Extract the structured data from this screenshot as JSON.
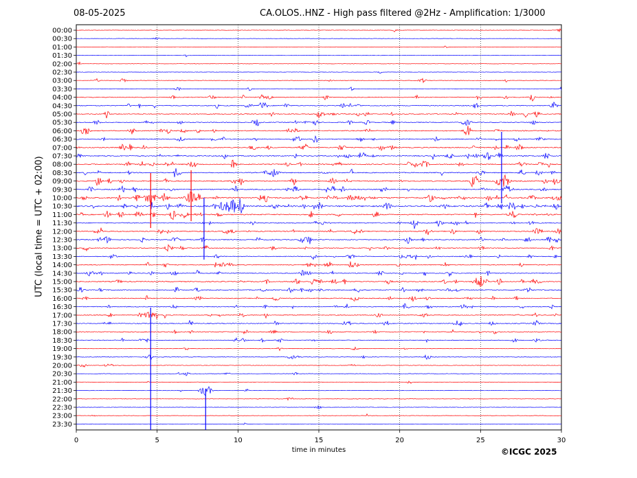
{
  "header": {
    "date": "08-05-2025",
    "title": "CA.OLOS..HNZ - High pass filtered @2Hz - Amplification: 1/3000"
  },
  "footer": {
    "copyright": "©ICGC 2025"
  },
  "colors": {
    "trace_even": "#ff0000",
    "trace_odd": "#0000ff",
    "grid": "#000000",
    "background": "#ffffff"
  },
  "chart_data": {
    "type": "line",
    "title": "CA.OLOS..HNZ - High pass filtered @2Hz - Amplification: 1/3000",
    "xlabel": "time in minutes",
    "ylabel": "UTC (local time = UTC + 02:00)",
    "xlim": [
      0,
      30
    ],
    "x_ticks": [
      0,
      5,
      10,
      15,
      20,
      25,
      30
    ],
    "vertical_grid_minutes": [
      5,
      10,
      15,
      20,
      25
    ],
    "grid": true,
    "row_labels": [
      "00:00",
      "00:30",
      "01:00",
      "01:30",
      "02:00",
      "02:30",
      "03:00",
      "03:30",
      "04:00",
      "04:30",
      "05:00",
      "05:30",
      "06:00",
      "06:30",
      "07:00",
      "07:30",
      "08:00",
      "08:30",
      "09:00",
      "09:30",
      "10:00",
      "10:30",
      "11:00",
      "11:30",
      "12:00",
      "12:30",
      "13:00",
      "13:30",
      "14:00",
      "14:30",
      "15:00",
      "15:30",
      "16:00",
      "16:30",
      "17:00",
      "17:30",
      "18:00",
      "18:30",
      "19:00",
      "19:30",
      "20:00",
      "20:30",
      "21:00",
      "21:30",
      "22:00",
      "22:30",
      "23:00",
      "23:30"
    ],
    "row_colors": "alternating red / blue by row",
    "activity_by_row": [
      0.05,
      0.03,
      0.03,
      0.03,
      0.03,
      0.03,
      0.15,
      0.12,
      0.4,
      0.5,
      0.5,
      0.5,
      0.55,
      0.55,
      0.6,
      0.65,
      0.65,
      0.55,
      0.7,
      0.7,
      1.0,
      1.0,
      0.7,
      0.55,
      0.6,
      0.55,
      0.45,
      0.45,
      0.5,
      0.5,
      0.55,
      0.5,
      0.45,
      0.45,
      0.45,
      0.45,
      0.4,
      0.35,
      0.12,
      0.2,
      0.12,
      0.12,
      0.08,
      0.05,
      0.05,
      0.03,
      0.05,
      0.03
    ],
    "large_events": [
      {
        "row": "10:00",
        "minute": 4.6
      },
      {
        "row": "10:00",
        "minute": 7.1
      },
      {
        "row": "10:30",
        "minute": 9.4
      },
      {
        "row": "09:00",
        "minute": 26.3
      },
      {
        "row": "15:00",
        "minute": 25.0
      },
      {
        "row": "17:00",
        "minute": 4.6
      },
      {
        "row": "21:30",
        "minute": 8.0
      }
    ]
  }
}
